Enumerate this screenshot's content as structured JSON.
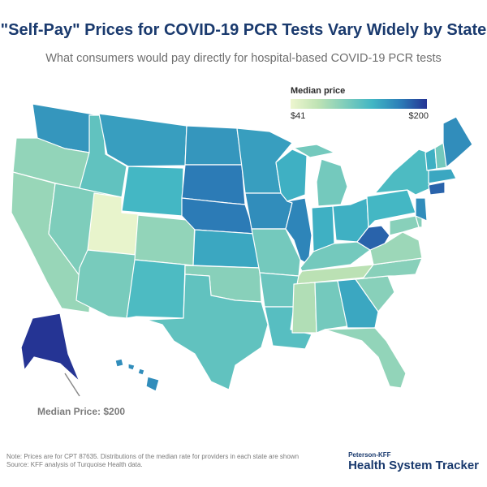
{
  "header": {
    "title": "\"Self-Pay\" Prices for COVID-19 PCR Tests Vary Widely by State",
    "subtitle": "What consumers would pay directly for hospital-based COVID-19 PCR tests"
  },
  "legend": {
    "title": "Median price",
    "min_label": "$41",
    "max_label": "$200",
    "min_value": 41,
    "max_value": 200,
    "colors": [
      "#eef6cf",
      "#bfe3b4",
      "#7fcdbb",
      "#41b6c4",
      "#2c7fb8",
      "#253494"
    ]
  },
  "callout": {
    "label": "Median Price: $200"
  },
  "footer": {
    "note_line1": "Note: Prices are for CPT 87635. Distributions of the median rate for providers in each state are shown",
    "note_line2": "Source: KFF analysis of Turquoise Health data.",
    "brand_top": "Peterson-KFF",
    "brand_main": "Health System Tracker"
  },
  "map_data": {
    "type": "choropleth",
    "metric": "median_self_pay_price_usd",
    "states": [
      {
        "code": "AK",
        "value": 200
      },
      {
        "code": "WA",
        "value": 155
      },
      {
        "code": "OR",
        "value": 95
      },
      {
        "code": "CA",
        "value": 92
      },
      {
        "code": "NV",
        "value": 105
      },
      {
        "code": "ID",
        "value": 120
      },
      {
        "code": "MT",
        "value": 150
      },
      {
        "code": "WY",
        "value": 135
      },
      {
        "code": "UT",
        "value": 45
      },
      {
        "code": "AZ",
        "value": 108
      },
      {
        "code": "CO",
        "value": 95
      },
      {
        "code": "NM",
        "value": 130
      },
      {
        "code": "ND",
        "value": 155
      },
      {
        "code": "SD",
        "value": 170
      },
      {
        "code": "NE",
        "value": 170
      },
      {
        "code": "KS",
        "value": 145
      },
      {
        "code": "OK",
        "value": 100
      },
      {
        "code": "TX",
        "value": 120
      },
      {
        "code": "MN",
        "value": 150
      },
      {
        "code": "IA",
        "value": 160
      },
      {
        "code": "MO",
        "value": 110
      },
      {
        "code": "AR",
        "value": 115
      },
      {
        "code": "LA",
        "value": 125
      },
      {
        "code": "WI",
        "value": 140
      },
      {
        "code": "IL",
        "value": 165
      },
      {
        "code": "MI",
        "value": 110
      },
      {
        "code": "IN",
        "value": 140
      },
      {
        "code": "OH",
        "value": 140
      },
      {
        "code": "KY",
        "value": 110
      },
      {
        "code": "TN",
        "value": 75
      },
      {
        "code": "MS",
        "value": 80
      },
      {
        "code": "AL",
        "value": 110
      },
      {
        "code": "GA",
        "value": 145
      },
      {
        "code": "FL",
        "value": 95
      },
      {
        "code": "SC",
        "value": 100
      },
      {
        "code": "NC",
        "value": 100
      },
      {
        "code": "VA",
        "value": 90
      },
      {
        "code": "WV",
        "value": 180
      },
      {
        "code": "PA",
        "value": 135
      },
      {
        "code": "NY",
        "value": 130
      },
      {
        "code": "VT",
        "value": 140
      },
      {
        "code": "NH",
        "value": 110
      },
      {
        "code": "ME",
        "value": 160
      },
      {
        "code": "MA",
        "value": 145
      },
      {
        "code": "CT",
        "value": 180
      },
      {
        "code": "NJ",
        "value": 160
      },
      {
        "code": "MD",
        "value": 100
      },
      {
        "code": "DE",
        "value": 100
      },
      {
        "code": "HI",
        "value": 160
      }
    ]
  }
}
